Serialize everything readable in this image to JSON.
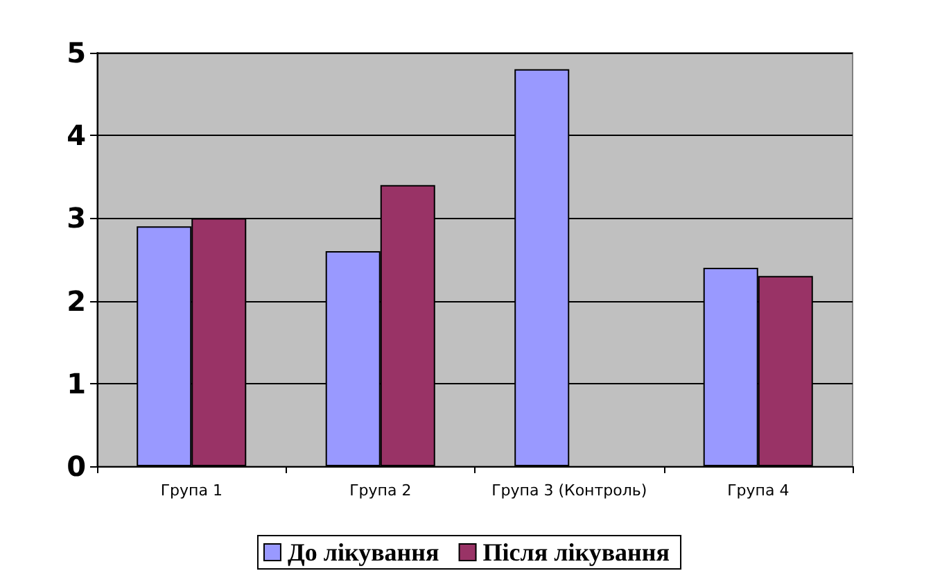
{
  "chart_data": {
    "type": "bar",
    "categories": [
      "Група 1",
      "Група 2",
      "Група 3 (Контроль)",
      "Група 4"
    ],
    "series": [
      {
        "name": "До лікування",
        "color": "#9999ff",
        "values": [
          2.9,
          2.6,
          4.8,
          2.4
        ]
      },
      {
        "name": "Після лікування",
        "color": "#993366",
        "values": [
          3.0,
          3.4,
          null,
          2.3
        ]
      }
    ],
    "ylim": [
      0,
      5
    ],
    "yticks": [
      0,
      1,
      2,
      3,
      4,
      5
    ],
    "grid": "y",
    "legend": "bottom"
  }
}
